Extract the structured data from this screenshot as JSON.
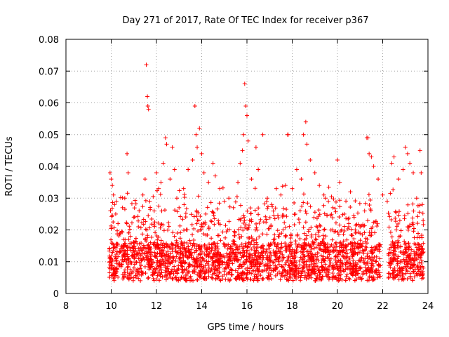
{
  "chart_data": {
    "type": "scatter",
    "title": "Day 271 of 2017, Rate Of TEC Index for receiver p367",
    "xlabel": "GPS time / hours",
    "ylabel": "ROTI / TECUs",
    "xlim": [
      8,
      24
    ],
    "ylim": [
      0,
      0.08
    ],
    "x_ticks": [
      8,
      10,
      12,
      14,
      16,
      18,
      20,
      22,
      24
    ],
    "y_ticks": [
      0,
      0.01,
      0.02,
      0.03,
      0.04,
      0.05,
      0.06,
      0.07,
      0.08
    ],
    "x_tick_labels": [
      "8",
      "10",
      "12",
      "14",
      "16",
      "18",
      "20",
      "22",
      "24"
    ],
    "y_tick_labels": [
      "0",
      "0.01",
      "0.02",
      "0.03",
      "0.04",
      "0.05",
      "0.06",
      "0.07",
      "0.08"
    ],
    "grid": true,
    "marker": "+",
    "color": "#ff0000",
    "series": [
      {
        "points": [
          [
            9.95,
            0.038
          ],
          [
            10.0,
            0.036
          ],
          [
            10.05,
            0.034
          ],
          [
            10.1,
            0.031
          ],
          [
            10.15,
            0.028
          ],
          [
            10.2,
            0.025
          ],
          [
            10.3,
            0.022
          ],
          [
            10.4,
            0.019
          ],
          [
            10.5,
            0.027
          ],
          [
            10.6,
            0.03
          ],
          [
            10.7,
            0.044
          ],
          [
            10.75,
            0.038
          ],
          [
            10.85,
            0.018
          ],
          [
            11.0,
            0.024
          ],
          [
            11.2,
            0.021
          ],
          [
            11.4,
            0.031
          ],
          [
            11.5,
            0.036
          ],
          [
            11.55,
            0.072
          ],
          [
            11.6,
            0.062
          ],
          [
            11.62,
            0.059
          ],
          [
            11.65,
            0.058
          ],
          [
            11.7,
            0.029
          ],
          [
            11.9,
            0.026
          ],
          [
            12.0,
            0.038
          ],
          [
            12.1,
            0.033
          ],
          [
            12.2,
            0.035
          ],
          [
            12.3,
            0.041
          ],
          [
            12.4,
            0.049
          ],
          [
            12.45,
            0.047
          ],
          [
            12.6,
            0.036
          ],
          [
            12.7,
            0.046
          ],
          [
            12.8,
            0.039
          ],
          [
            12.9,
            0.03
          ],
          [
            13.0,
            0.027
          ],
          [
            13.2,
            0.033
          ],
          [
            13.4,
            0.039
          ],
          [
            13.6,
            0.042
          ],
          [
            13.7,
            0.059
          ],
          [
            13.75,
            0.05
          ],
          [
            13.8,
            0.046
          ],
          [
            13.9,
            0.052
          ],
          [
            14.0,
            0.044
          ],
          [
            14.1,
            0.038
          ],
          [
            14.3,
            0.035
          ],
          [
            14.5,
            0.041
          ],
          [
            14.6,
            0.037
          ],
          [
            14.8,
            0.033
          ],
          [
            15.0,
            0.029
          ],
          [
            15.2,
            0.03
          ],
          [
            15.4,
            0.027
          ],
          [
            15.6,
            0.035
          ],
          [
            15.7,
            0.041
          ],
          [
            15.8,
            0.045
          ],
          [
            15.85,
            0.05
          ],
          [
            15.9,
            0.066
          ],
          [
            15.95,
            0.059
          ],
          [
            16.0,
            0.056
          ],
          [
            16.05,
            0.048
          ],
          [
            16.2,
            0.036
          ],
          [
            16.4,
            0.046
          ],
          [
            16.5,
            0.039
          ],
          [
            16.7,
            0.05
          ],
          [
            16.9,
            0.03
          ],
          [
            17.1,
            0.028
          ],
          [
            17.3,
            0.033
          ],
          [
            17.5,
            0.031
          ],
          [
            17.7,
            0.034
          ],
          [
            17.8,
            0.05
          ],
          [
            17.82,
            0.05
          ],
          [
            18.0,
            0.033
          ],
          [
            18.2,
            0.039
          ],
          [
            18.4,
            0.036
          ],
          [
            18.5,
            0.05
          ],
          [
            18.6,
            0.054
          ],
          [
            18.65,
            0.047
          ],
          [
            18.8,
            0.042
          ],
          [
            19.0,
            0.038
          ],
          [
            19.2,
            0.034
          ],
          [
            19.4,
            0.031
          ],
          [
            19.6,
            0.029
          ],
          [
            19.8,
            0.027
          ],
          [
            20.0,
            0.042
          ],
          [
            20.1,
            0.035
          ],
          [
            20.3,
            0.025
          ],
          [
            20.5,
            0.021
          ],
          [
            20.8,
            0.019
          ],
          [
            21.0,
            0.021
          ],
          [
            21.2,
            0.026
          ],
          [
            21.3,
            0.049
          ],
          [
            21.35,
            0.049
          ],
          [
            21.4,
            0.044
          ],
          [
            21.5,
            0.043
          ],
          [
            21.6,
            0.04
          ],
          [
            21.8,
            0.036
          ],
          [
            22.0,
            0.031
          ],
          [
            22.2,
            0.029
          ],
          [
            22.4,
            0.041
          ],
          [
            22.5,
            0.043
          ],
          [
            22.7,
            0.036
          ],
          [
            22.9,
            0.039
          ],
          [
            23.0,
            0.046
          ],
          [
            23.1,
            0.044
          ],
          [
            23.2,
            0.041
          ],
          [
            23.35,
            0.038
          ],
          [
            23.5,
            0.03
          ],
          [
            23.65,
            0.045
          ],
          [
            23.7,
            0.038
          ],
          [
            23.75,
            0.028
          ]
        ]
      }
    ],
    "dense_band": {
      "x_start": 9.9,
      "x_end": 23.8,
      "gap": [
        21.9,
        22.25
      ],
      "y_low": 0.004,
      "y_high": 0.016
    }
  }
}
